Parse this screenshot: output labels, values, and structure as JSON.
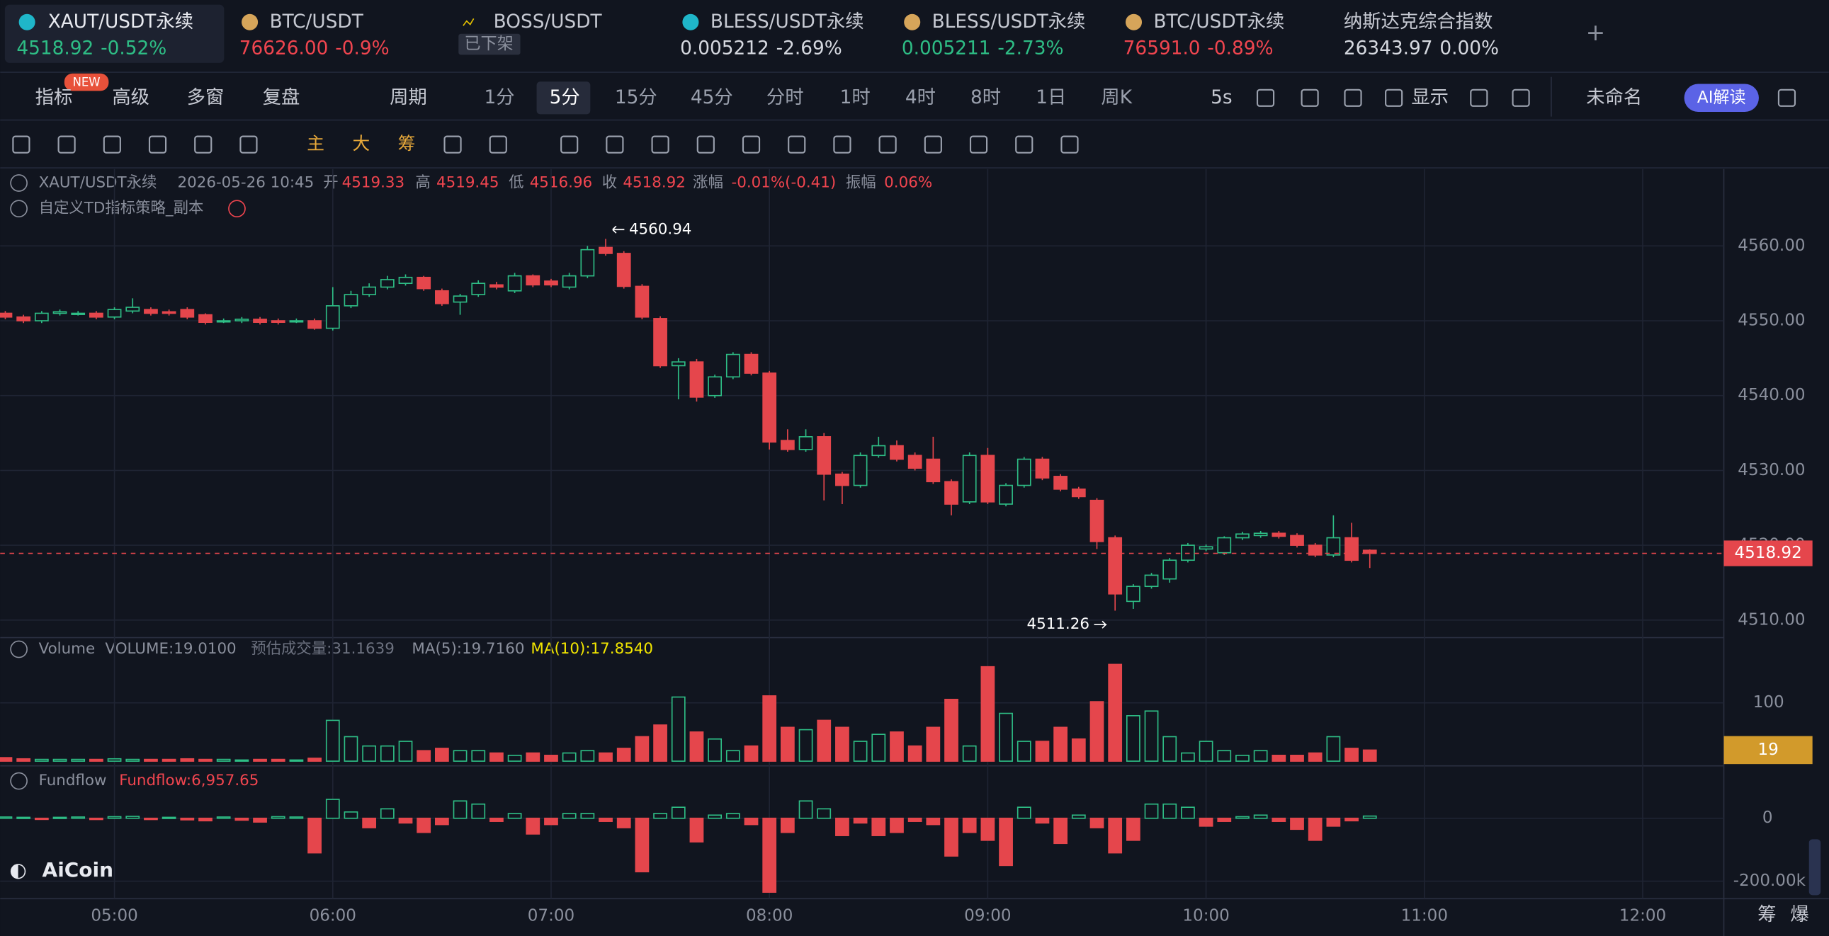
{
  "tickers": [
    {
      "name": "XAUT/USDT永续",
      "price": "4518.92",
      "change": "-0.52%",
      "color": "#2ebd85"
    },
    {
      "name": "BTC/USDT",
      "price": "76626.00",
      "change": "-0.9%",
      "color": "#f0454f"
    },
    {
      "name": "BOSS/USDT",
      "status": "已下架"
    },
    {
      "name": "BLESS/USDT永续",
      "price": "0.005212",
      "change": "-2.69%",
      "color": "#d6d9e0"
    },
    {
      "name": "BLESS/USDT永续",
      "price": "0.005211",
      "change": "-2.73%",
      "color": "#2ebd85"
    },
    {
      "name": "BTC/USDT永续",
      "price": "76591.0",
      "change": "-0.89%",
      "color": "#f0454f"
    },
    {
      "name": "纳斯达克综合指数",
      "price": "26343.97",
      "change": "0.00%",
      "color": "#d6d9e0"
    }
  ],
  "toolbar": {
    "items": [
      "指标",
      "高级",
      "多窗",
      "复盘",
      "周期",
      "1分",
      "5分",
      "15分",
      "45分",
      "分时",
      "1时",
      "4时",
      "8时",
      "1日",
      "周K",
      "5s",
      "显示",
      "未命名"
    ],
    "selected_index": 6,
    "badge": "NEW",
    "ai": "AI解读"
  },
  "drawing_tools": [
    "主",
    "大",
    "筹"
  ],
  "legend": {
    "symbol": "XAUT/USDT永续",
    "time": "2026-05-26 10:45",
    "open": "开",
    "high": "高",
    "low": "低",
    "close": "收",
    "change_label": "涨幅",
    "change": "-0.01%(-0.41)",
    "amp_label": "振幅",
    "amp": "0.06%",
    "indicator": "自定义TD指标策略_副本",
    "volume": [
      "VOLUME:19.0100",
      "预估成交量:31.1639",
      "MA(5):19.7160",
      "MA(10):17.8540"
    ],
    "fundflow": "Fundflow:6,957.65"
  },
  "logo": "AiCoin",
  "side_buttons": [
    "筹",
    "爆"
  ],
  "chart_data": [
    {
      "type": "candlestick",
      "up_color": "#2ebd85",
      "down_color": "#e5464c",
      "open": [
        4551,
        4550.5,
        4550,
        4551,
        4551,
        4551,
        4550.5,
        4551.3,
        4551.5,
        4551.2,
        4551.5,
        4550.8,
        4550,
        4550,
        4550.2,
        4550,
        4550,
        4550,
        4549,
        4552,
        4553.5,
        4554.5,
        4555,
        4555.8,
        4554,
        4552.5,
        4553.5,
        4554.8,
        4554,
        4556,
        4555.3,
        4554.5,
        4556,
        4559.8,
        4559,
        4554.6,
        4550.3,
        4544,
        4544.5,
        4540,
        4542.5,
        4545.5,
        4543,
        4534,
        4532.8,
        4534.5,
        4529.5,
        4528,
        4532,
        4533.3,
        4532,
        4531.5,
        4528.5,
        4525.8,
        4532,
        4525.5,
        4528,
        4531.5,
        4529.2,
        4527.5,
        4526,
        4521,
        4512.5,
        4514.5,
        4515.5,
        4518,
        4519.5,
        4519,
        4521,
        4521.3,
        4521.6,
        4521.3,
        4520,
        4518.7,
        4521,
        4519.33
      ],
      "high": [
        4551.3,
        4550.8,
        4551.3,
        4551.5,
        4551.3,
        4551.3,
        4551.8,
        4553,
        4551.8,
        4551.5,
        4551.8,
        4551,
        4550.3,
        4550.5,
        4550.5,
        4550.3,
        4550.3,
        4550.3,
        4554.5,
        4554,
        4555,
        4556,
        4556.2,
        4556,
        4554.3,
        4553.6,
        4555.4,
        4555.2,
        4556.4,
        4556.2,
        4555.6,
        4556.4,
        4560,
        4560.94,
        4559.3,
        4554.9,
        4550.6,
        4545,
        4544.9,
        4542.8,
        4545.8,
        4545.8,
        4543.3,
        4535.5,
        4535.5,
        4535,
        4529.8,
        4532.4,
        4534.5,
        4534,
        4532.4,
        4534.5,
        4528.8,
        4532.4,
        4533,
        4528.3,
        4531.8,
        4531.8,
        4529.5,
        4527.8,
        4526.3,
        4521.3,
        4514.8,
        4516.3,
        4518.3,
        4520.3,
        4520.1,
        4521.2,
        4521.8,
        4521.9,
        4521.9,
        4521.6,
        4520.3,
        4524,
        4523,
        4519.45
      ],
      "low": [
        4550.2,
        4549.7,
        4549.7,
        4550.7,
        4550.7,
        4550.2,
        4550.2,
        4551,
        4550.7,
        4550.7,
        4550.2,
        4549.5,
        4549.7,
        4549.7,
        4549.5,
        4549.5,
        4549.7,
        4548.8,
        4548.7,
        4551.7,
        4553.2,
        4554.2,
        4554.7,
        4554,
        4552,
        4550.8,
        4553.2,
        4554.2,
        4553.7,
        4554.5,
        4554.5,
        4554.2,
        4555.7,
        4558.7,
        4554.3,
        4550.2,
        4543.7,
        4539.5,
        4539.2,
        4539.7,
        4542.2,
        4542.7,
        4532.8,
        4532.5,
        4532.5,
        4526,
        4525.5,
        4527.7,
        4531.7,
        4531.2,
        4530,
        4528.2,
        4524,
        4525.5,
        4525.5,
        4525.2,
        4527.7,
        4528.7,
        4527.2,
        4526.2,
        4519.5,
        4511.26,
        4511.5,
        4514.2,
        4515,
        4517.7,
        4519.2,
        4518.7,
        4520.7,
        4521,
        4520.9,
        4519.7,
        4518.4,
        4518.4,
        4517.7,
        4516.96
      ],
      "close": [
        4550.5,
        4550,
        4551,
        4551.2,
        4551,
        4550.5,
        4551.5,
        4551.8,
        4551,
        4551,
        4550.5,
        4549.8,
        4550,
        4550.2,
        4549.8,
        4549.8,
        4550,
        4549,
        4552,
        4553.5,
        4554.5,
        4555.5,
        4555.8,
        4554.3,
        4552.3,
        4553.3,
        4555,
        4554.5,
        4556,
        4554.8,
        4554.8,
        4556,
        4559.5,
        4559,
        4554.6,
        4550.5,
        4544,
        4544.5,
        4539.8,
        4542.5,
        4545.5,
        4543,
        4533.8,
        4532.8,
        4534.5,
        4529.5,
        4528,
        4532,
        4533.3,
        4531.5,
        4530.3,
        4528.5,
        4525.5,
        4532,
        4525.8,
        4528,
        4531.5,
        4529,
        4527.5,
        4526.5,
        4520.5,
        4513.5,
        4514.5,
        4516,
        4518,
        4520,
        4519.8,
        4521,
        4521.5,
        4521.6,
        4521.2,
        4520,
        4518.7,
        4521,
        4518,
        4518.92
      ],
      "xlim": [
        -0.28,
        94.46
      ],
      "xticks": [
        {
          "value": 6,
          "label": "05:00"
        },
        {
          "value": 18,
          "label": "06:00"
        },
        {
          "value": 30,
          "label": "07:00"
        },
        {
          "value": 42,
          "label": "08:00"
        },
        {
          "value": 54,
          "label": "09:00"
        },
        {
          "value": 66,
          "label": "10:00"
        },
        {
          "value": 78,
          "label": "11:00"
        },
        {
          "value": 90,
          "label": "12:00"
        }
      ],
      "ylim": [
        4507.97,
        4570.28
      ],
      "yticks": [
        {
          "value": 4510,
          "label": "4510.00"
        },
        {
          "value": 4520,
          "label": "4520.00"
        },
        {
          "value": 4530,
          "label": "4530.00"
        },
        {
          "value": 4540,
          "label": "4540.00"
        },
        {
          "value": 4550,
          "label": "4550.00"
        },
        {
          "value": 4560,
          "label": "4560.00"
        }
      ],
      "grid": true
    },
    {
      "type": "bar",
      "title": "Volume",
      "color": "#e5c100",
      "values": [
        6,
        4,
        3,
        3,
        3,
        3,
        4,
        3,
        3,
        3,
        4,
        3,
        3,
        2,
        3,
        3,
        2,
        5,
        70,
        42,
        26,
        26,
        34,
        18,
        22,
        18,
        18,
        14,
        10,
        14,
        10,
        14,
        18,
        14,
        22,
        42,
        62,
        110,
        50,
        38,
        18,
        26,
        112,
        58,
        54,
        70,
        58,
        34,
        46,
        50,
        26,
        58,
        106,
        26,
        162,
        82,
        34,
        34,
        58,
        38,
        102,
        166,
        78,
        86,
        42,
        14,
        34,
        18,
        10,
        18,
        10,
        10,
        14,
        42,
        22,
        19.01
      ],
      "current_label": "19",
      "ylim": [
        -4,
        210
      ],
      "yticks": [
        100
      ],
      "grid": true
    },
    {
      "type": "bar",
      "title": "Fundflow",
      "values": [
        4000,
        3000,
        -3000,
        3000,
        4000,
        -4000,
        5000,
        6000,
        -4000,
        3000,
        -5000,
        -8000,
        4000,
        -6000,
        -12000,
        5000,
        4000,
        -110000,
        60000,
        20000,
        -30000,
        30000,
        -15000,
        -45000,
        -20000,
        55000,
        45000,
        -10000,
        15000,
        -50000,
        -20000,
        15000,
        15000,
        -10000,
        -30000,
        -170000,
        15000,
        35000,
        -75000,
        10000,
        15000,
        -20000,
        -235000,
        -45000,
        55000,
        30000,
        -55000,
        -15000,
        -55000,
        -45000,
        -10000,
        -20000,
        -120000,
        -45000,
        -70000,
        -150000,
        35000,
        -15000,
        -80000,
        10000,
        -30000,
        -110000,
        -70000,
        45000,
        45000,
        35000,
        -25000,
        -10000,
        5000,
        10000,
        -10000,
        -35000,
        -70000,
        -25000,
        -8000,
        6957.65
      ],
      "ylim": [
        -252000,
        155600
      ],
      "yticks": [
        0,
        {
          "value": -200000,
          "label": "-200.00k"
        }
      ],
      "grid": true
    }
  ]
}
